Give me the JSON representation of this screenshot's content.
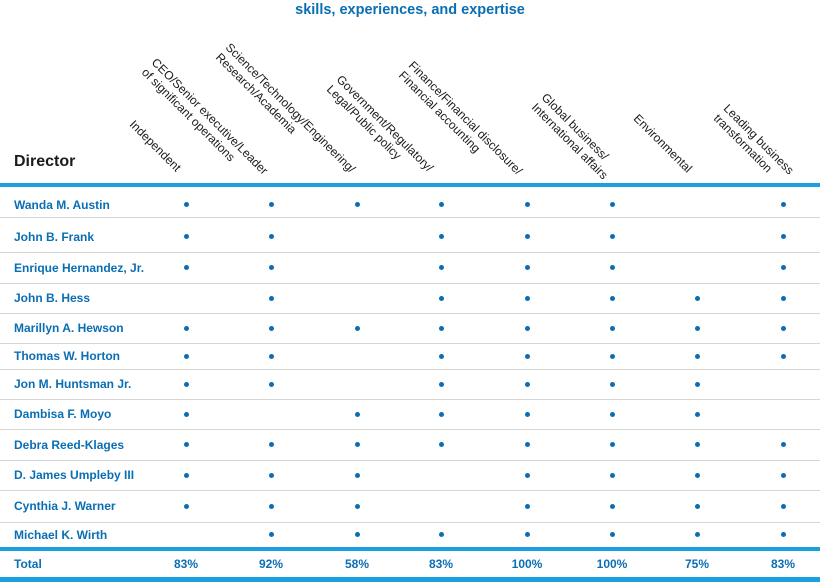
{
  "title": "skills, experiences, and expertise",
  "director_label": "Director",
  "columns": [
    {
      "lines": [
        "Independent"
      ]
    },
    {
      "lines": [
        "CEO/Senior executive/Leader",
        "of significant operations"
      ]
    },
    {
      "lines": [
        "Science/Technology/Engineering/",
        "Research/Academia"
      ]
    },
    {
      "lines": [
        "Government/Regulatory/",
        "Legal/Public policy"
      ]
    },
    {
      "lines": [
        "Finance/Financial disclosure/",
        "Financial accounting"
      ]
    },
    {
      "lines": [
        "Global business/",
        "International affairs"
      ]
    },
    {
      "lines": [
        "Environmental"
      ]
    },
    {
      "lines": [
        "Leading business",
        "transformation"
      ]
    }
  ],
  "directors": [
    {
      "name": "Wanda M. Austin",
      "marks": [
        1,
        1,
        1,
        1,
        1,
        1,
        0,
        1
      ]
    },
    {
      "name": "John B. Frank",
      "marks": [
        1,
        1,
        0,
        1,
        1,
        1,
        0,
        1
      ]
    },
    {
      "name": "Enrique Hernandez, Jr.",
      "marks": [
        1,
        1,
        0,
        1,
        1,
        1,
        0,
        1
      ]
    },
    {
      "name": "John B. Hess",
      "marks": [
        0,
        1,
        0,
        1,
        1,
        1,
        1,
        1
      ]
    },
    {
      "name": "Marillyn A. Hewson",
      "marks": [
        1,
        1,
        1,
        1,
        1,
        1,
        1,
        1
      ]
    },
    {
      "name": "Thomas W. Horton",
      "marks": [
        1,
        1,
        0,
        1,
        1,
        1,
        1,
        1
      ]
    },
    {
      "name": "Jon M. Huntsman Jr.",
      "marks": [
        1,
        1,
        0,
        1,
        1,
        1,
        1,
        0
      ]
    },
    {
      "name": "Dambisa F. Moyo",
      "marks": [
        1,
        0,
        1,
        1,
        1,
        1,
        1,
        0
      ]
    },
    {
      "name": "Debra Reed-Klages",
      "marks": [
        1,
        1,
        1,
        1,
        1,
        1,
        1,
        1
      ]
    },
    {
      "name": "D. James Umpleby III",
      "marks": [
        1,
        1,
        1,
        0,
        1,
        1,
        1,
        1
      ]
    },
    {
      "name": "Cynthia J. Warner",
      "marks": [
        1,
        1,
        1,
        0,
        1,
        1,
        1,
        1
      ]
    },
    {
      "name": "Michael K. Wirth",
      "marks": [
        0,
        1,
        1,
        1,
        1,
        1,
        1,
        1
      ]
    }
  ],
  "total_label": "Total",
  "totals": [
    "83%",
    "92%",
    "58%",
    "83%",
    "100%",
    "100%",
    "75%",
    "83%"
  ],
  "colors": {
    "accent": "#0a6eb4",
    "bar": "#1a9fe0",
    "divider": "#d6d6d6"
  }
}
